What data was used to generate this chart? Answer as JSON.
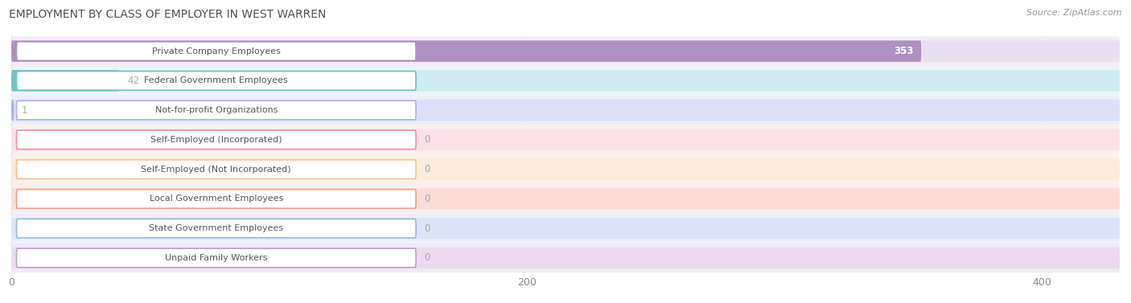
{
  "title": "EMPLOYMENT BY CLASS OF EMPLOYER IN WEST WARREN",
  "source": "Source: ZipAtlas.com",
  "categories": [
    "Private Company Employees",
    "Federal Government Employees",
    "Not-for-profit Organizations",
    "Self-Employed (Incorporated)",
    "Self-Employed (Not Incorporated)",
    "Local Government Employees",
    "State Government Employees",
    "Unpaid Family Workers"
  ],
  "values": [
    353,
    42,
    1,
    0,
    0,
    0,
    0,
    0
  ],
  "bar_colors": [
    "#b090c0",
    "#6ec4c4",
    "#a8b4e8",
    "#f090a0",
    "#f5c090",
    "#f0a090",
    "#98b8e8",
    "#c0a0d0"
  ],
  "bar_bg_colors": [
    "#e8e0f0",
    "#d0ecf0",
    "#dce0f8",
    "#fce0e8",
    "#fceadc",
    "#fcdcd8",
    "#dce4f8",
    "#ecdaf0"
  ],
  "row_bg_colors": [
    "#f0edf5",
    "#eaf5f5",
    "#eceef8",
    "#faeef0",
    "#faf2ea",
    "#faeeec",
    "#ecf0fa",
    "#f0eaf5"
  ],
  "xlim": [
    0,
    430
  ],
  "xticks": [
    0,
    200,
    400
  ],
  "value_label_color": "#aaaaaa",
  "value_in_bar_color": "#ffffff",
  "title_color": "#505050",
  "source_color": "#999999",
  "background_color": "#ffffff",
  "row_sep_color": "#e0e0e8"
}
